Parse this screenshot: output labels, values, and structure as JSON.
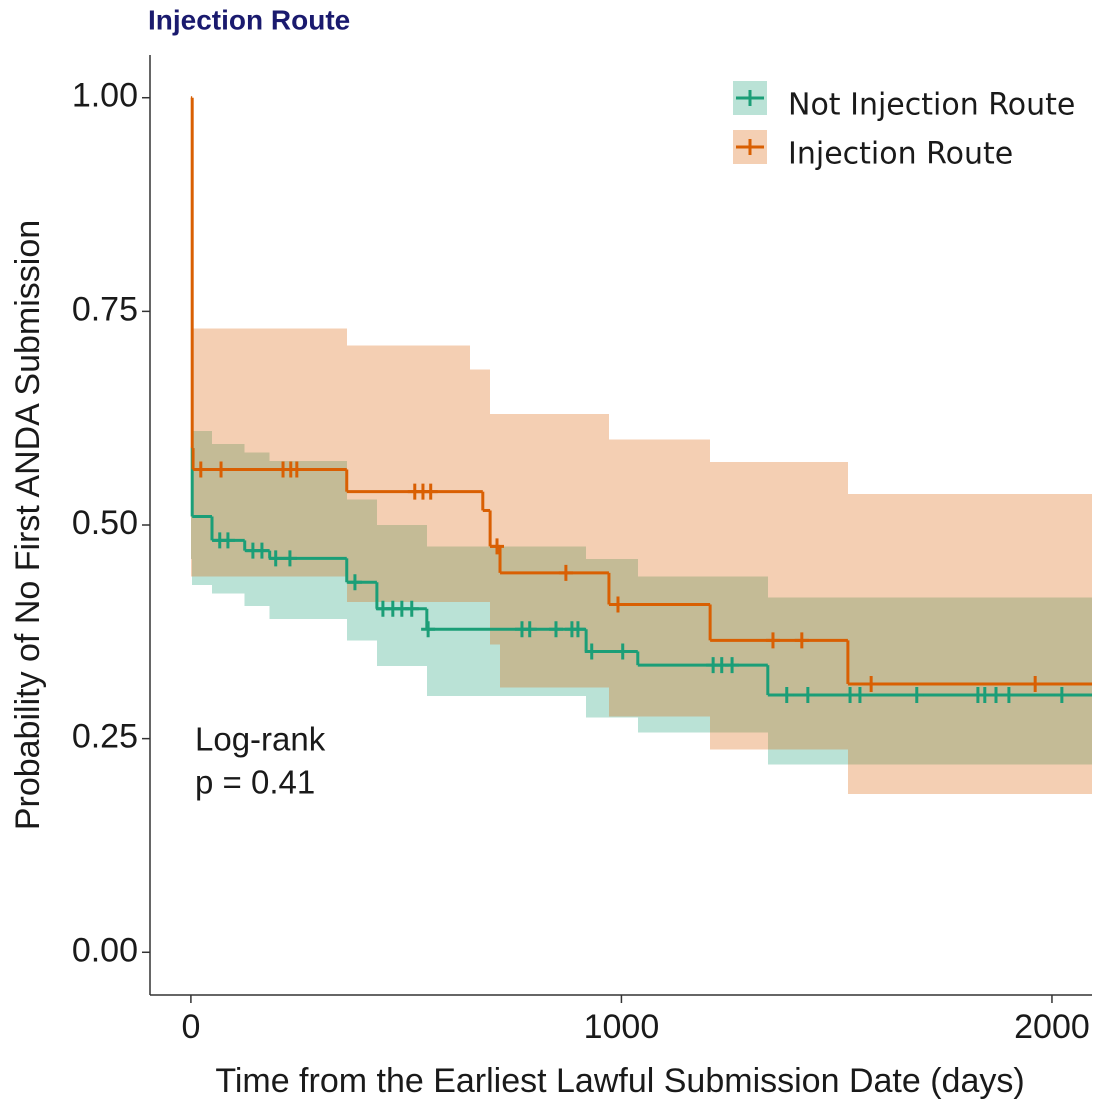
{
  "chart_data": {
    "type": "survival",
    "title": "Injection Route",
    "xlabel": "Time from the Earliest Lawful Submission Date (days)",
    "ylabel": "Probability of No First ANDA Submission",
    "annotation": [
      "Log-rank",
      "p = 0.41"
    ],
    "legend": "top-right",
    "grid": false,
    "xlim": [
      -95,
      2093
    ],
    "ylim": [
      -0.05,
      1.05
    ],
    "xticks": [
      0,
      1000,
      2000
    ],
    "yticks": [
      {
        "value": 0,
        "label": "0.00"
      },
      {
        "value": 0.25,
        "label": "0.25"
      },
      {
        "value": 0.5,
        "label": "0.50"
      },
      {
        "value": 0.75,
        "label": "0.75"
      },
      {
        "value": 1,
        "label": "1.00"
      }
    ],
    "series": [
      {
        "name": "Not Injection Route",
        "color": "#1b9e77",
        "x": [
          0,
          3,
          49,
          125,
          183,
          362,
          432,
          548,
          918,
          1038,
          1340
        ],
        "values": [
          0.59,
          0.51,
          0.482,
          0.47,
          0.461,
          0.433,
          0.402,
          0.378,
          0.352,
          0.336,
          0.301
        ],
        "band_x": [
          0,
          3,
          49,
          125,
          183,
          362,
          432,
          548,
          918,
          1038,
          1340
        ],
        "band_upper": [
          0.61,
          0.61,
          0.595,
          0.585,
          0.575,
          0.53,
          0.5,
          0.475,
          0.46,
          0.44,
          0.415
        ],
        "band_lower": [
          0.46,
          0.43,
          0.42,
          0.405,
          0.39,
          0.365,
          0.335,
          0.3,
          0.275,
          0.257,
          0.22
        ],
        "censor_x": [
          67,
          86,
          144,
          165,
          197,
          230,
          381,
          446,
          469,
          490,
          513,
          551,
          769,
          787,
          848,
          885,
          899,
          931,
          1003,
          1213,
          1233,
          1257,
          1384,
          1433,
          1531,
          1554,
          1686,
          1828,
          1844,
          1870,
          1900,
          2023
        ],
        "censor_y": [
          0.482,
          0.482,
          0.47,
          0.47,
          0.461,
          0.461,
          0.433,
          0.402,
          0.402,
          0.402,
          0.402,
          0.378,
          0.378,
          0.378,
          0.378,
          0.378,
          0.378,
          0.352,
          0.352,
          0.336,
          0.336,
          0.336,
          0.301,
          0.301,
          0.301,
          0.301,
          0.301,
          0.301,
          0.301,
          0.301,
          0.301,
          0.301
        ]
      },
      {
        "name": "Injection Route",
        "color": "#d95f02",
        "x": [
          0,
          3,
          5,
          362,
          678,
          695,
          718,
          971,
          1206,
          1526
        ],
        "values": [
          1,
          0.59,
          0.565,
          0.539,
          0.517,
          0.475,
          0.444,
          0.407,
          0.365,
          0.314
        ],
        "band_x": [
          0,
          5,
          362,
          648,
          695,
          718,
          971,
          1206,
          1526
        ],
        "band_upper": [
          0.75,
          0.73,
          0.71,
          0.682,
          0.63,
          0.63,
          0.6,
          0.574,
          0.536
        ],
        "band_lower": [
          0.44,
          0.44,
          0.41,
          0.41,
          0.36,
          0.31,
          0.276,
          0.237,
          0.185
        ],
        "censor_x": [
          23,
          70,
          214,
          232,
          246,
          520,
          539,
          557,
          711,
          871,
          992,
          1352,
          1419,
          1580,
          1961
        ],
        "censor_y": [
          0.565,
          0.565,
          0.565,
          0.565,
          0.565,
          0.539,
          0.539,
          0.539,
          0.475,
          0.444,
          0.407,
          0.365,
          0.365,
          0.314,
          0.314
        ]
      }
    ]
  }
}
